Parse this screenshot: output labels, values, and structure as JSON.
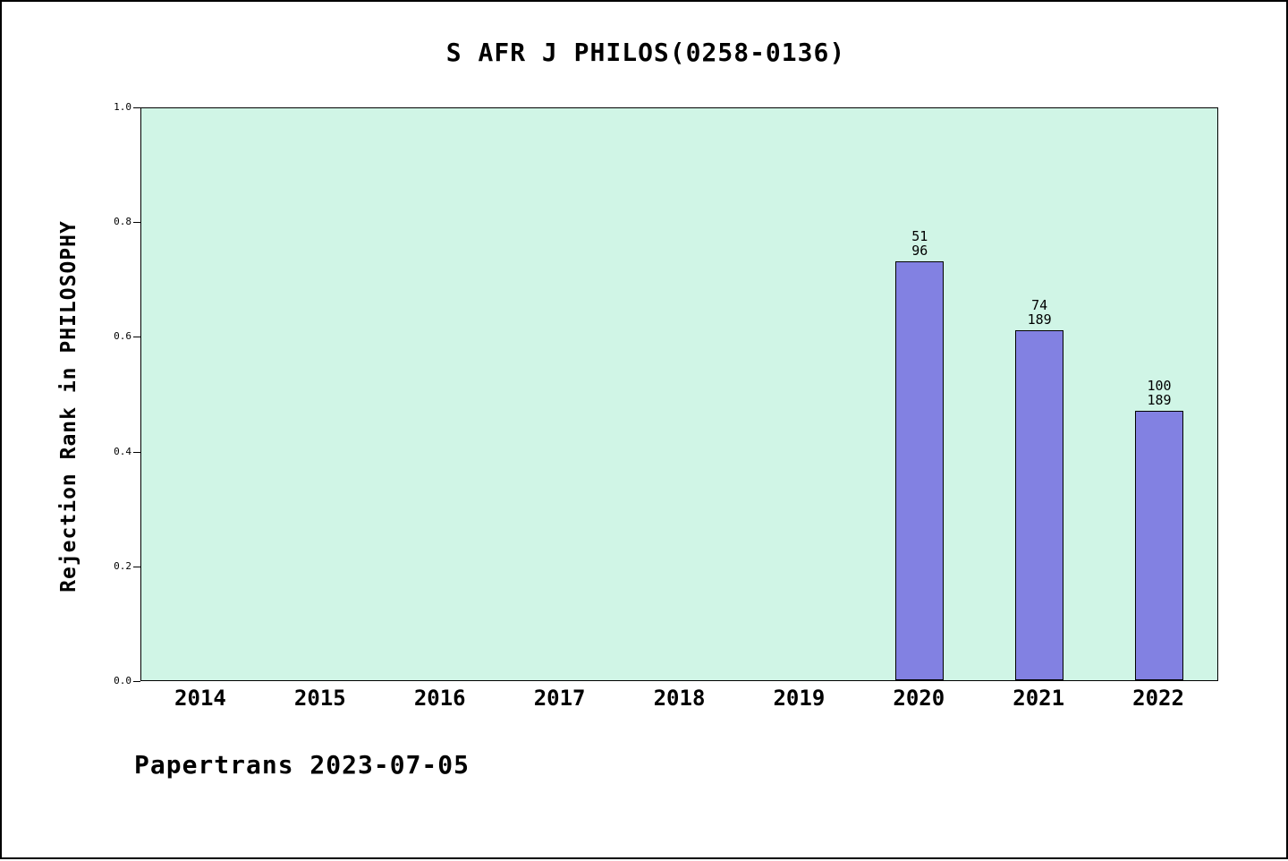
{
  "title": "S AFR J PHILOS(0258-0136)",
  "footer": "Papertrans 2023-07-05",
  "chart_data": {
    "type": "bar",
    "title": "S AFR J PHILOS(0258-0136)",
    "xlabel": "",
    "ylabel": "Rejection Rank in PHILOSOPHY",
    "categories": [
      "2014",
      "2015",
      "2016",
      "2017",
      "2018",
      "2019",
      "2020",
      "2021",
      "2022"
    ],
    "values": [
      null,
      null,
      null,
      null,
      null,
      null,
      0.73,
      0.61,
      0.47
    ],
    "bar_labels": [
      null,
      null,
      null,
      null,
      null,
      null,
      {
        "numerator": "51",
        "denominator": "96"
      },
      {
        "numerator": "74",
        "denominator": "189"
      },
      {
        "numerator": "100",
        "denominator": "189"
      }
    ],
    "ylim": [
      0,
      1
    ],
    "yticks": [
      0.0,
      0.2,
      0.4,
      0.6,
      0.8,
      1.0
    ],
    "grid": false,
    "legend_position": "none",
    "colors": {
      "bar_fill": "#8281e2",
      "bar_border": "#000000",
      "plot_background": "#d0f5e6",
      "page_background": "#ffffff",
      "text": "#000000"
    }
  }
}
